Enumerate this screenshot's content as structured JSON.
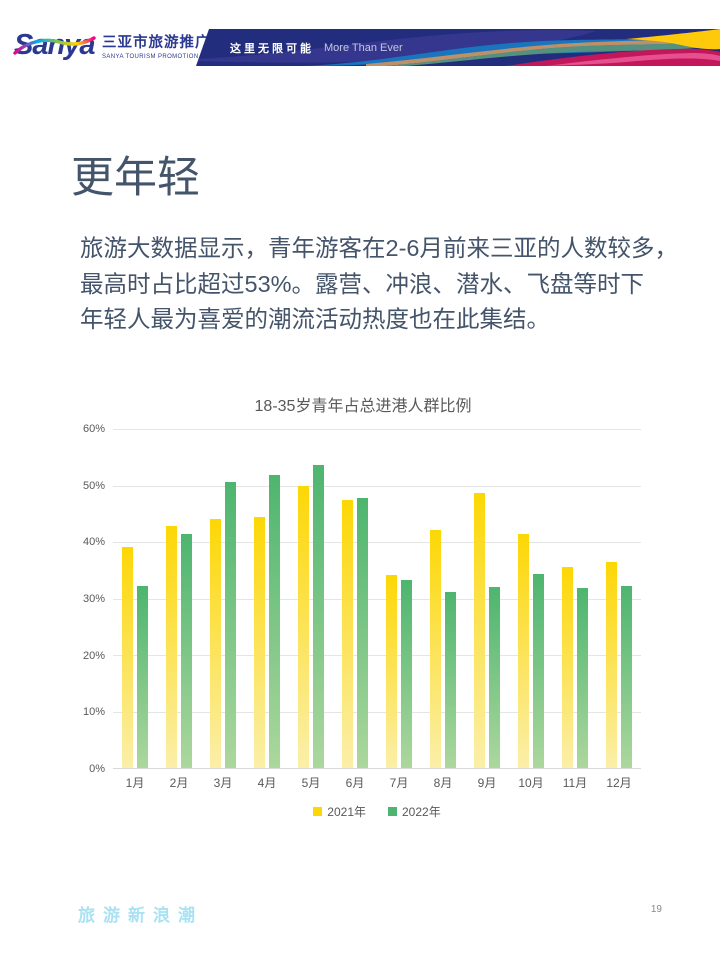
{
  "header": {
    "logo_text": "Sanya",
    "org_name_cn": "三亚市旅游推广局",
    "org_name_en": "SANYA TOURISM PROMOTION BOARD",
    "slogan_cn": "这里无限可能",
    "slogan_en": "More Than Ever"
  },
  "content": {
    "title": "更年轻",
    "body_lines": [
      "旅游大数据显示，青年游客在2-6月前来三亚的人数较多，",
      "最高时占比超过53%。露营、冲浪、潜水、飞盘等时下",
      "年轻人最为喜爱的潮流活动热度也在此集结。"
    ]
  },
  "chart_data": {
    "type": "bar",
    "title": "18-35岁青年占总进港人群比例",
    "categories": [
      "1月",
      "2月",
      "3月",
      "4月",
      "5月",
      "6月",
      "7月",
      "8月",
      "9月",
      "10月",
      "11月",
      "12月"
    ],
    "series": [
      {
        "name": "2021年",
        "color": "#FCD705",
        "color_bottom": "#FBEFA9",
        "values": [
          39.1,
          42.8,
          44.1,
          44.4,
          49.9,
          47.4,
          34.1,
          42.2,
          48.6,
          41.5,
          35.5,
          36.4
        ]
      },
      {
        "name": "2022年",
        "color": "#4DB56F",
        "color_bottom": "#ACD79D",
        "values": [
          32.3,
          41.5,
          50.6,
          51.8,
          53.6,
          47.8,
          33.3,
          31.2,
          32.1,
          34.3,
          31.8,
          32.2
        ]
      }
    ],
    "ylim": [
      0,
      60
    ],
    "ytick_labels": [
      "0%",
      "10%",
      "20%",
      "30%",
      "40%",
      "50%",
      "60%"
    ],
    "grid": true,
    "legend_position": "bottom",
    "text_color": "#595959",
    "gridline_color": "#E5E5E5"
  },
  "footer": {
    "brand": "旅游新浪潮",
    "page_number": "19"
  }
}
